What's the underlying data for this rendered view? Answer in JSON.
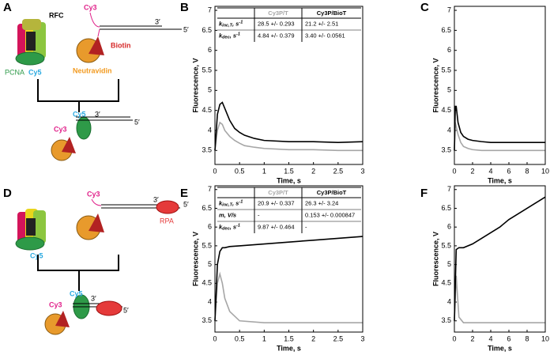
{
  "panel_letters": [
    "A",
    "B",
    "C",
    "D",
    "E",
    "F"
  ],
  "panel_a": {
    "rfc": "RFC",
    "pcna": "PCNA",
    "cy5": "Cy5",
    "cy3": "Cy3",
    "biotin": "Biotin",
    "neutravidin": "Neutravidin",
    "end3": "3′",
    "end5": "5′",
    "complex_cy5": "Cy5",
    "complex_cy3": "Cy3",
    "complex_end3": "3′",
    "complex_end5": "5′"
  },
  "panel_d": {
    "cy5": "Cy5",
    "cy3": "Cy3",
    "end3": "3′",
    "end5": "5′",
    "rpa": "RPA",
    "complex_cy5": "Cy5",
    "complex_cy3": "Cy3",
    "complex_end3": "3′",
    "complex_end5": "5′"
  },
  "chart_data": [
    {
      "type": "line",
      "xlabel": "Time, s",
      "ylabel": "Fluorescence, V",
      "xlim": [
        0,
        3
      ],
      "ylim": [
        3.15,
        7.1
      ],
      "xticks": [
        0,
        0.5,
        1,
        1.5,
        2,
        2.5,
        3
      ],
      "yticks": [
        3.5,
        4,
        4.5,
        5,
        5.5,
        6,
        6.5,
        7
      ],
      "x": [
        0,
        0.05,
        0.1,
        0.15,
        0.2,
        0.3,
        0.4,
        0.5,
        0.6,
        0.8,
        1,
        1.5,
        2,
        2.5,
        3
      ],
      "series": [
        {
          "color": "#000000",
          "values": [
            3.5,
            4.4,
            4.65,
            4.7,
            4.55,
            4.25,
            4.05,
            3.95,
            3.88,
            3.8,
            3.75,
            3.72,
            3.72,
            3.7,
            3.72
          ]
        },
        {
          "color": "#a6a6a6",
          "values": [
            3.5,
            4.0,
            4.2,
            4.15,
            4.0,
            3.85,
            3.75,
            3.68,
            3.62,
            3.58,
            3.55,
            3.52,
            3.52,
            3.5,
            3.5
          ]
        }
      ],
      "table": {
        "header": [
          "Cy3P/T",
          "Cy3P/BioT"
        ],
        "rows": [
          [
            {
              "text": "k",
              "sub": "inc,T",
              "tail": ", s",
              "sup": "-1"
            },
            "28.5 +/- 0.293",
            "21.2 +/- 2.51"
          ],
          [
            {
              "text": "k",
              "sub": "dec",
              "tail": ", s",
              "sup": "-1"
            },
            "4.84 +/- 0.379",
            "3.40 +/- 0.0561"
          ]
        ]
      }
    },
    {
      "type": "line",
      "xlabel": "Time, s",
      "ylabel": "Fluorescence, V",
      "xlim": [
        0,
        10
      ],
      "ylim": [
        3.15,
        7.1
      ],
      "xticks": [
        0,
        2,
        4,
        6,
        8,
        10
      ],
      "yticks": [
        3.5,
        4,
        4.5,
        5,
        5.5,
        6,
        6.5,
        7
      ],
      "x": [
        0,
        0.1,
        0.2,
        0.4,
        0.7,
        1,
        1.5,
        2,
        3,
        4,
        6,
        8,
        10
      ],
      "series": [
        {
          "color": "#000000",
          "values": [
            3.5,
            4.6,
            4.6,
            4.2,
            3.95,
            3.85,
            3.78,
            3.75,
            3.72,
            3.7,
            3.7,
            3.7,
            3.7
          ]
        },
        {
          "color": "#a6a6a6",
          "values": [
            3.5,
            4.2,
            4.1,
            3.9,
            3.7,
            3.6,
            3.55,
            3.52,
            3.5,
            3.5,
            3.5,
            3.5,
            3.5
          ]
        }
      ]
    },
    {
      "type": "line",
      "xlabel": "Time, s",
      "ylabel": "Fluorescence, V",
      "xlim": [
        0,
        3
      ],
      "ylim": [
        3.2,
        7.1
      ],
      "xticks": [
        0,
        0.5,
        1,
        1.5,
        2,
        2.5,
        3
      ],
      "yticks": [
        3.5,
        4,
        4.5,
        5,
        5.5,
        6,
        6.5,
        7
      ],
      "x": [
        0,
        0.05,
        0.1,
        0.15,
        0.2,
        0.3,
        0.5,
        1,
        1.5,
        2,
        2.5,
        3
      ],
      "series": [
        {
          "color": "#000000",
          "values": [
            3.5,
            5.0,
            5.35,
            5.45,
            5.45,
            5.48,
            5.5,
            5.55,
            5.6,
            5.65,
            5.7,
            5.75
          ]
        },
        {
          "color": "#a6a6a6",
          "values": [
            3.5,
            4.5,
            4.75,
            4.5,
            4.1,
            3.75,
            3.5,
            3.45,
            3.45,
            3.45,
            3.45,
            3.45
          ]
        }
      ],
      "table": {
        "header": [
          "Cy3P/T",
          "Cy3P/BioT"
        ],
        "rows": [
          [
            {
              "text": "k",
              "sub": "inc,T",
              "tail": ", s",
              "sup": "-1"
            },
            "20.9 +/- 0.337",
            "26.3 +/- 3.24"
          ],
          [
            {
              "text": "m, V/s"
            },
            "-",
            "0.153 +/- 0.000847"
          ],
          [
            {
              "text": "k",
              "sub": "dec",
              "tail": ", s",
              "sup": "-1"
            },
            "9.87 +/- 0.464",
            "-"
          ]
        ]
      }
    },
    {
      "type": "line",
      "xlabel": "Time, s",
      "ylabel": "Fluorescence, V",
      "xlim": [
        0,
        10
      ],
      "ylim": [
        3.2,
        7.1
      ],
      "xticks": [
        0,
        2,
        4,
        6,
        8,
        10
      ],
      "yticks": [
        3.5,
        4,
        4.5,
        5,
        5.5,
        6,
        6.5,
        7
      ],
      "x": [
        0,
        0.2,
        0.5,
        1,
        2,
        3,
        4,
        5,
        6,
        7,
        8,
        9,
        10
      ],
      "series": [
        {
          "color": "#000000",
          "values": [
            3.5,
            5.4,
            5.45,
            5.45,
            5.55,
            5.7,
            5.85,
            6.0,
            6.2,
            6.35,
            6.5,
            6.65,
            6.8
          ]
        },
        {
          "color": "#a6a6a6",
          "values": [
            3.5,
            4.7,
            3.6,
            3.45,
            3.45,
            3.45,
            3.45,
            3.45,
            3.45,
            3.45,
            3.45,
            3.45,
            3.45
          ]
        }
      ]
    }
  ]
}
